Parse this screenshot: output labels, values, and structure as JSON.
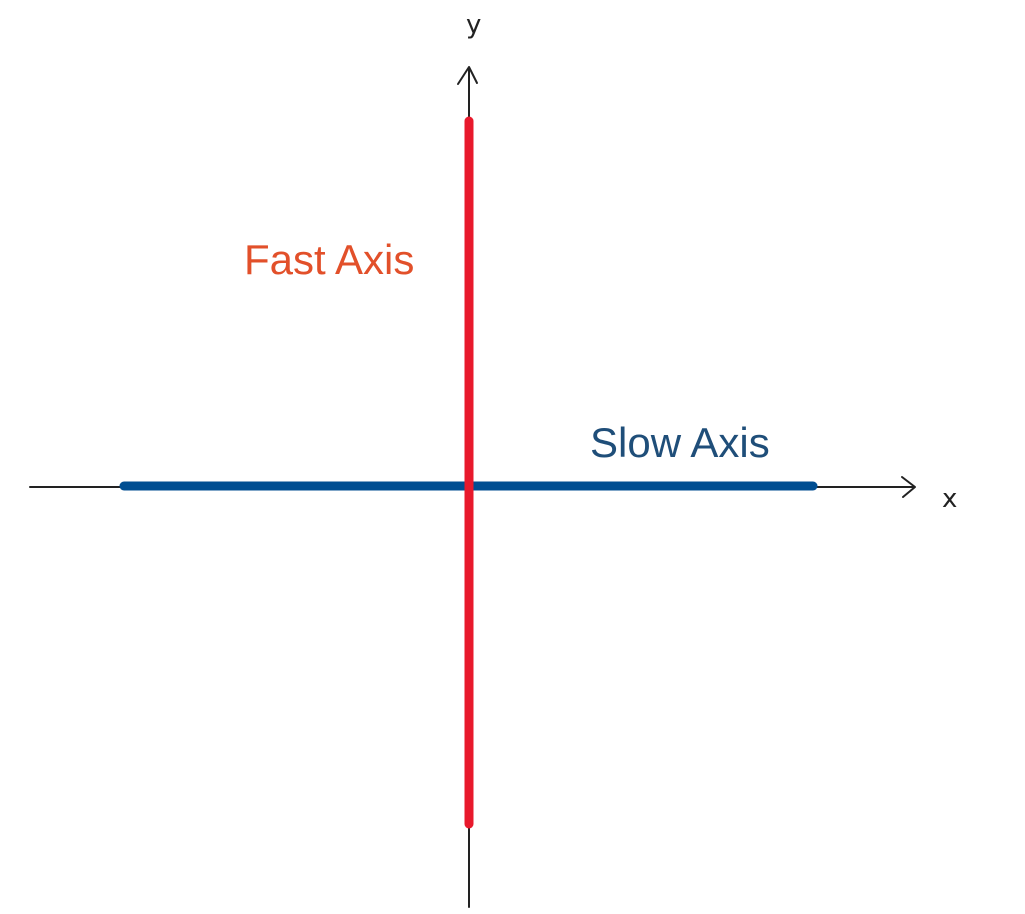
{
  "diagram": {
    "x_axis_label": "x",
    "y_axis_label": "y",
    "fast_axis": {
      "label": "Fast Axis",
      "color": "#e8192c",
      "label_color": "#e2502a",
      "orientation": "vertical"
    },
    "slow_axis": {
      "label": "Slow Axis",
      "color": "#004e92",
      "label_color": "#1f4e79",
      "orientation": "horizontal"
    },
    "axis_line_color": "#222222"
  }
}
